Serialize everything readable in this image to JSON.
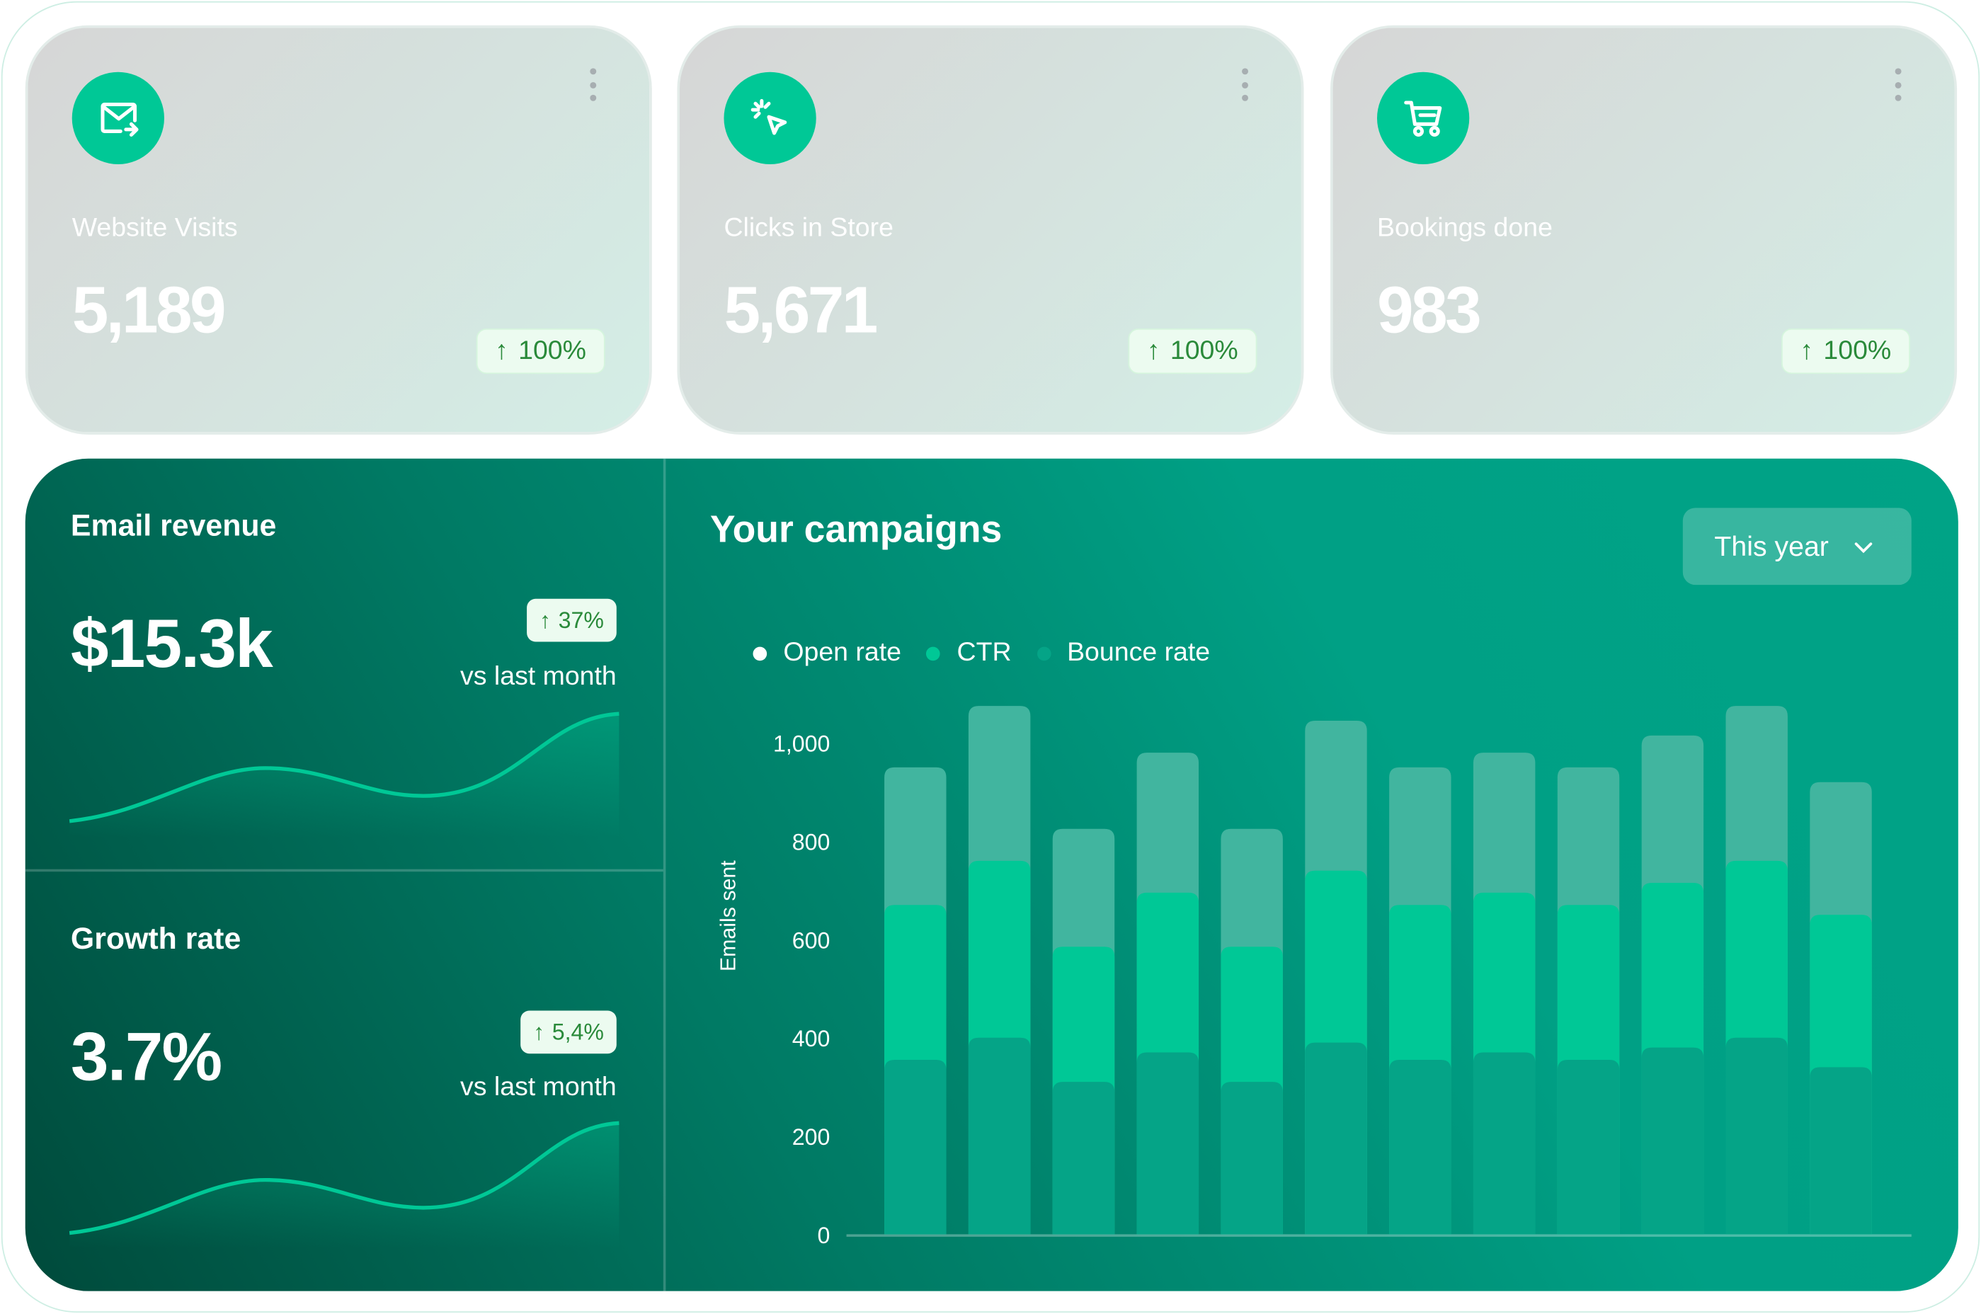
{
  "cards": [
    {
      "icon": "mail-forward-icon",
      "label": "Website Visits",
      "value": "5,189",
      "change": "100%"
    },
    {
      "icon": "click-pointer-icon",
      "label": "Clicks in Store",
      "value": "5,671",
      "change": "100%"
    },
    {
      "icon": "shopping-cart-icon",
      "label": "Bookings done",
      "value": "983",
      "change": "100%"
    }
  ],
  "email_revenue": {
    "title": "Email revenue",
    "value": "$15.3k",
    "change": "37%",
    "compare": "vs last month"
  },
  "growth_rate": {
    "title": "Growth rate",
    "value": "3.7%",
    "change": "5,4%",
    "compare": "vs last month"
  },
  "campaigns": {
    "title": "Your campaigns",
    "period": "This year"
  },
  "colors": {
    "accent": "#00c896",
    "badge_text": "#2a8a3a",
    "open_rate": "#41b59f",
    "ctr": "#00c896",
    "bounce": "#05a487"
  },
  "chart_data": {
    "type": "bar",
    "ylabel": "Emails sent",
    "ylim": [
      0,
      1100
    ],
    "yticks": [
      "0",
      "200",
      "400",
      "600",
      "800",
      "1,000"
    ],
    "grid": false,
    "legend": "top-left",
    "series": [
      {
        "name": "Open rate",
        "values": [
          950,
          1075,
          825,
          980,
          825,
          1045,
          950,
          980,
          950,
          1015,
          1075,
          920
        ]
      },
      {
        "name": "CTR",
        "values": [
          670,
          760,
          585,
          695,
          585,
          740,
          670,
          695,
          670,
          715,
          760,
          650
        ]
      },
      {
        "name": "Bounce rate",
        "values": [
          355,
          400,
          310,
          370,
          310,
          390,
          355,
          370,
          355,
          380,
          400,
          340
        ]
      }
    ]
  }
}
